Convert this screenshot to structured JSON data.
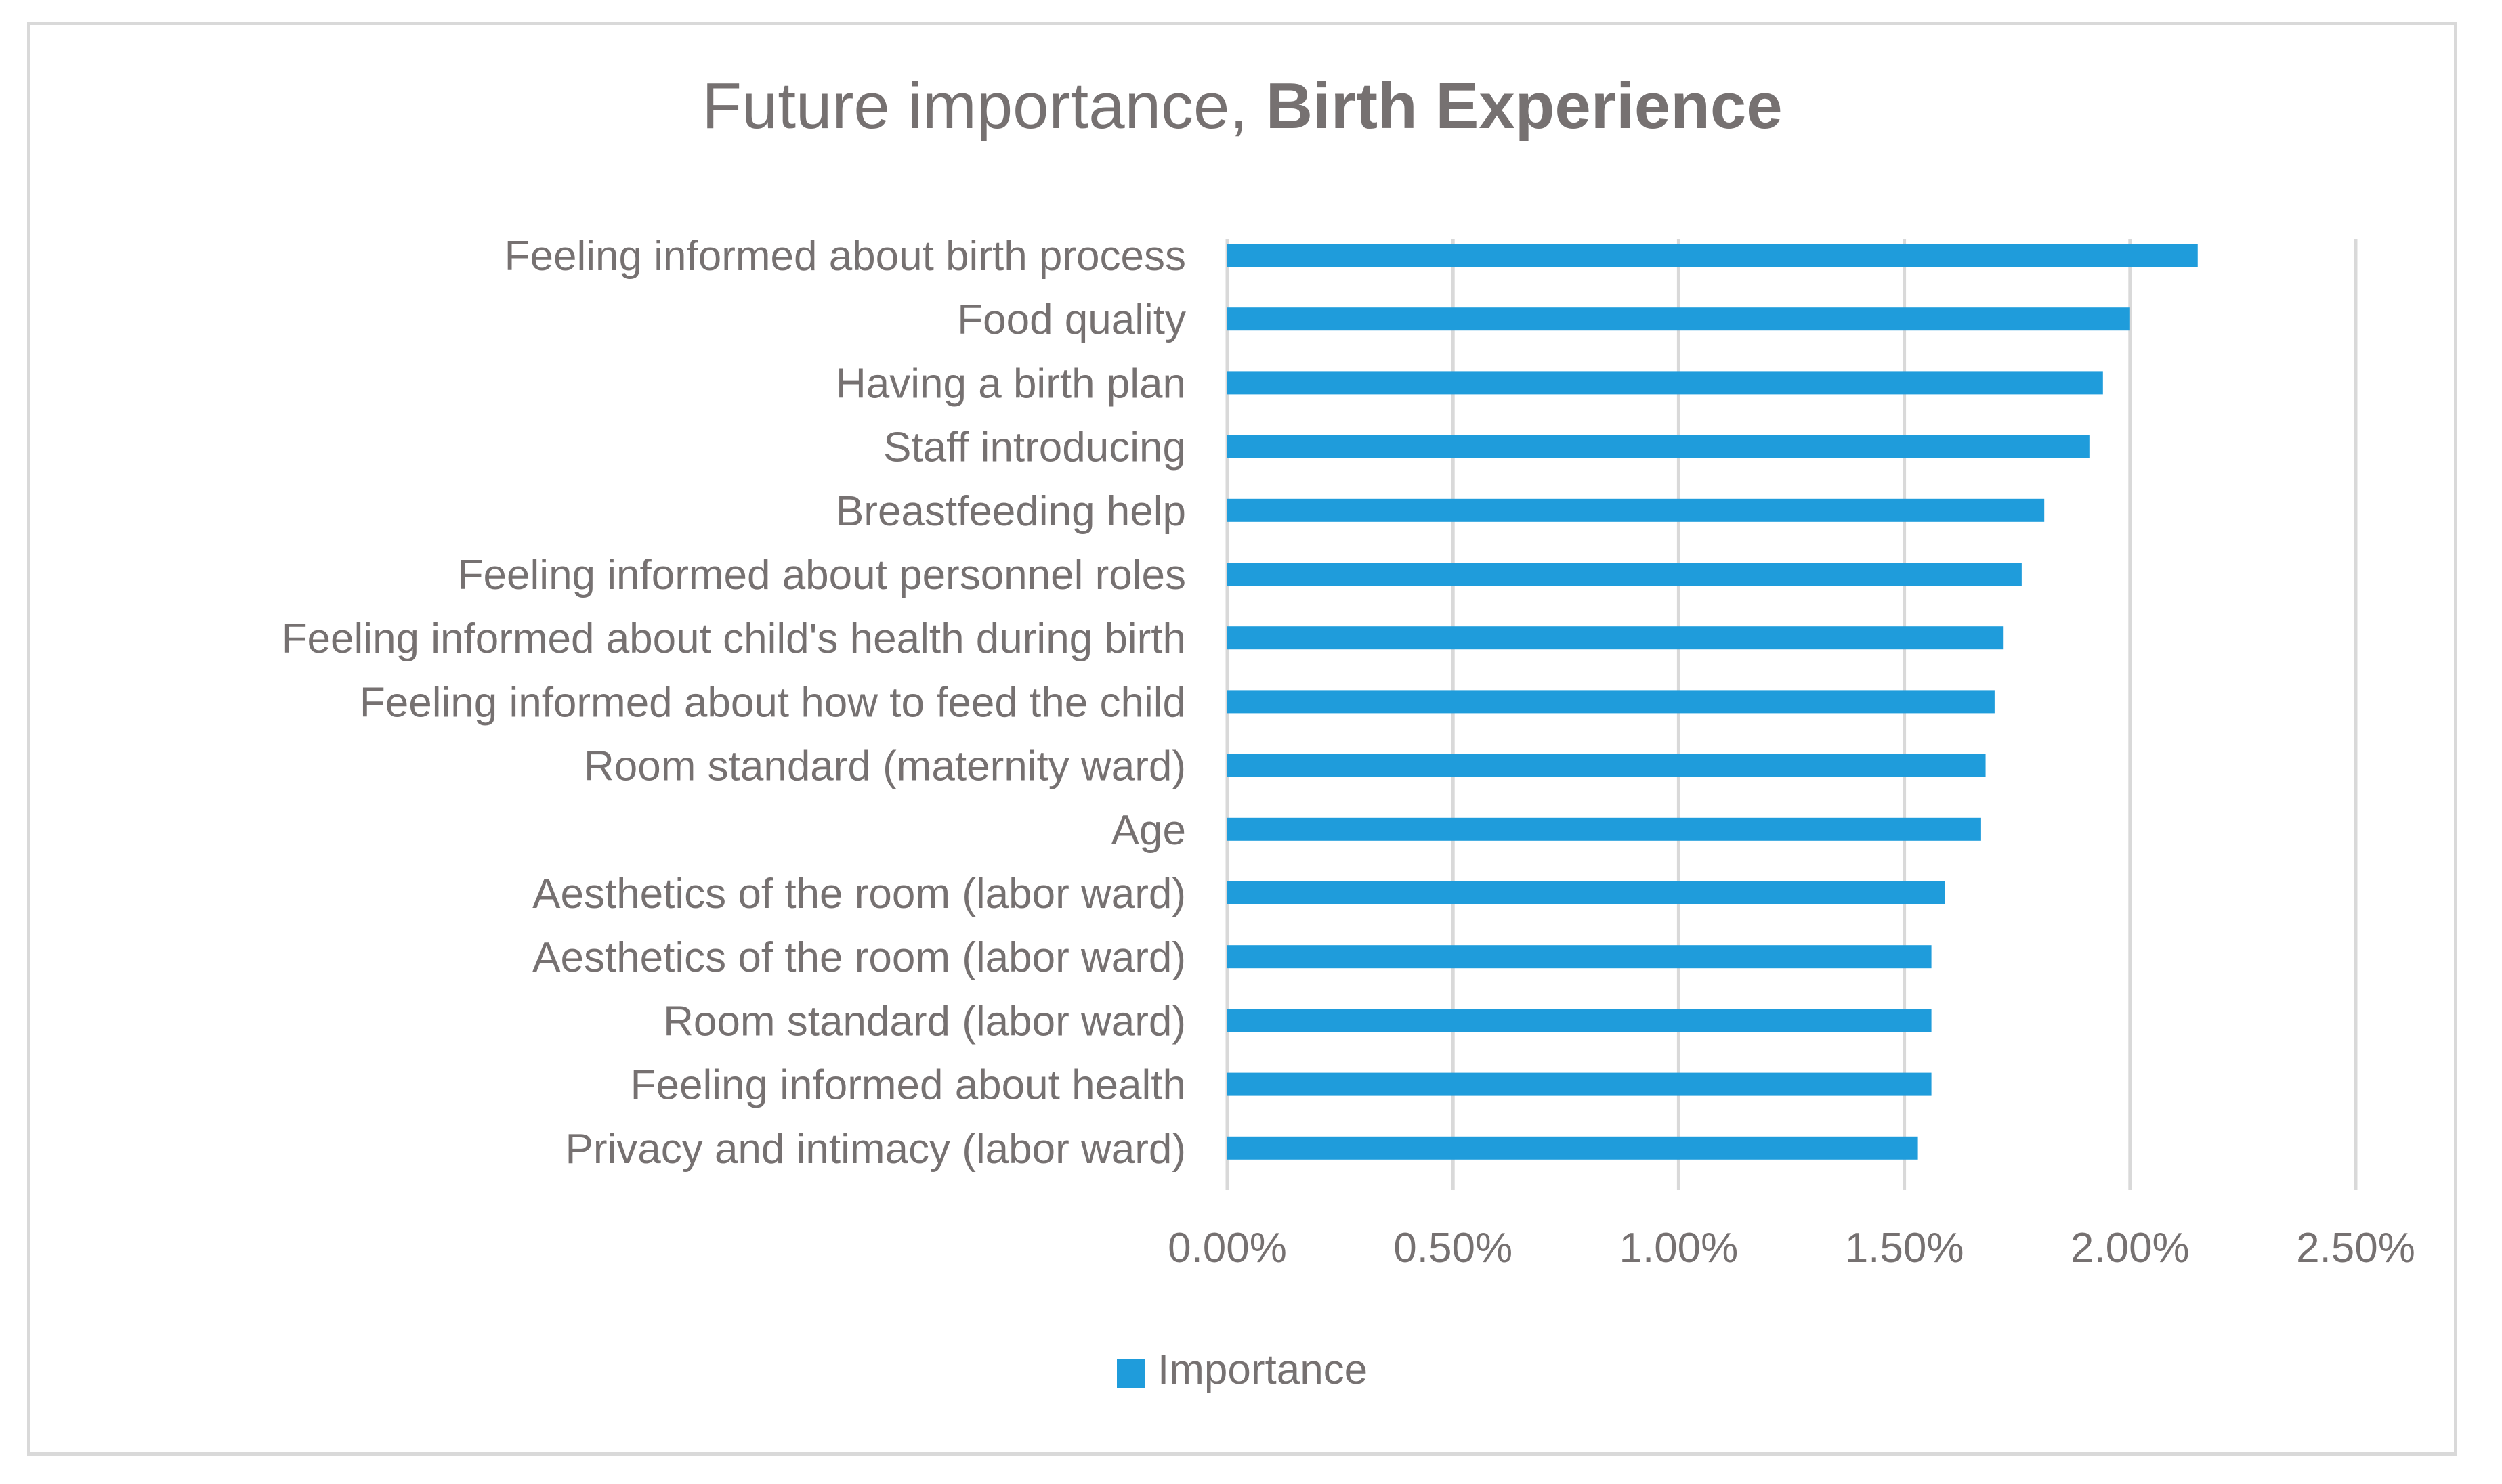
{
  "chart_data": {
    "type": "bar",
    "orientation": "horizontal",
    "title": "Future importance, ",
    "title_bold": "Birth Experience",
    "categories": [
      "Feeling informed about birth process",
      "Food quality",
      "Having a birth plan",
      "Staff introducing",
      "Breastfeeding help",
      "Feeling informed about personnel roles",
      "Feeling informed about child's health during birth",
      "Feeling informed about how to feed the child",
      "Room standard (maternity ward)",
      "Age",
      "Aesthetics of the room (labor ward)",
      "Aesthetics of the room (labor ward)",
      "Room standard (labor ward)",
      "Feeling informed about health",
      "Privacy and intimacy (labor ward)"
    ],
    "series": [
      {
        "name": "Importance",
        "color": "#1f9cdb",
        "values": [
          2.15,
          2.0,
          1.94,
          1.91,
          1.81,
          1.76,
          1.72,
          1.7,
          1.68,
          1.67,
          1.59,
          1.56,
          1.56,
          1.56,
          1.53
        ]
      }
    ],
    "x_ticks": [
      0,
      0.5,
      1.0,
      1.5,
      2.0,
      2.5
    ],
    "x_tick_labels": [
      "0.00%",
      "0.50%",
      "1.00%",
      "1.50%",
      "2.00%",
      "2.50%"
    ],
    "xlim": [
      0,
      2.5
    ],
    "x_unit": "%",
    "grid": "vertical",
    "legend_position": "bottom",
    "colors": {
      "bar": "#1f9cdb",
      "grid": "#d9d9d9",
      "text": "#767171",
      "border": "#d9d9d9"
    }
  }
}
